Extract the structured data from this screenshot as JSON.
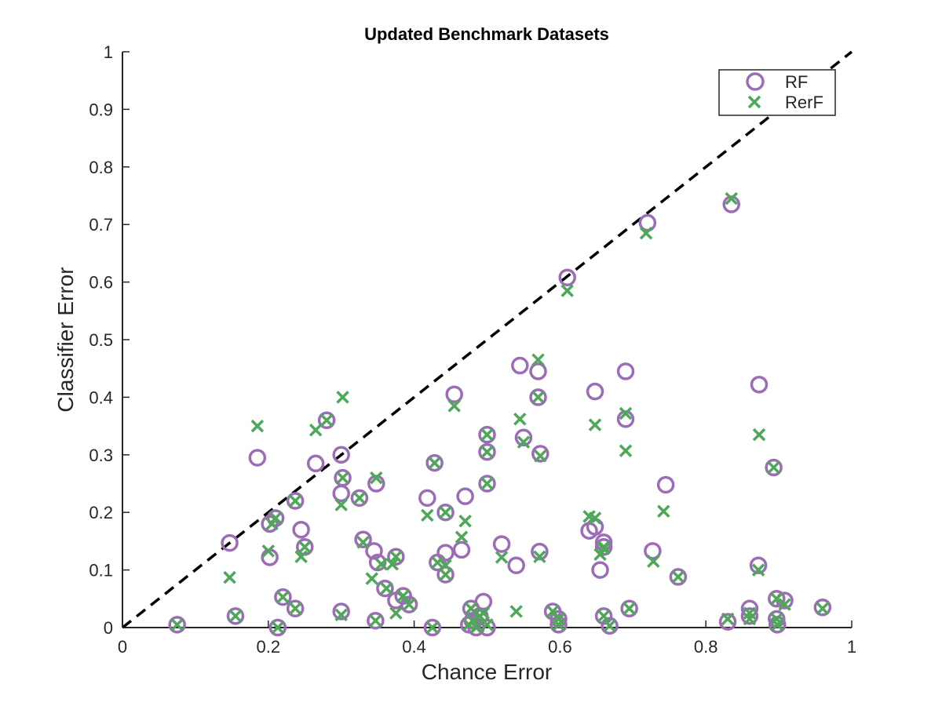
{
  "chart_data": {
    "type": "scatter",
    "title": "Updated Benchmark Datasets",
    "xlabel": "Chance Error",
    "ylabel": "Classifier Error",
    "xlim": [
      0,
      1
    ],
    "ylim": [
      0,
      1
    ],
    "xticks": [
      0,
      0.2,
      0.4,
      0.6,
      0.8,
      1
    ],
    "xtick_labels": [
      "0",
      "0.2",
      "0.4",
      "0.6",
      "0.8",
      "1"
    ],
    "yticks": [
      0,
      0.1,
      0.2,
      0.3,
      0.4,
      0.5,
      0.6,
      0.7,
      0.8,
      0.9,
      1
    ],
    "ytick_labels": [
      "0",
      "0.1",
      "0.2",
      "0.3",
      "0.4",
      "0.5",
      "0.6",
      "0.7",
      "0.8",
      "0.9",
      "1"
    ],
    "grid": false,
    "legend_position": "top-right",
    "reference_line": {
      "style": "dashed",
      "color": "#000000",
      "from": [
        0,
        0
      ],
      "to": [
        1,
        1
      ]
    },
    "series": [
      {
        "name": "RF",
        "marker": "circle",
        "color": "#9b6db5",
        "points": [
          [
            0.075,
            0.005
          ],
          [
            0.147,
            0.147
          ],
          [
            0.155,
            0.02
          ],
          [
            0.185,
            0.295
          ],
          [
            0.202,
            0.18
          ],
          [
            0.202,
            0.122
          ],
          [
            0.21,
            0.19
          ],
          [
            0.213,
            0.0
          ],
          [
            0.22,
            0.053
          ],
          [
            0.237,
            0.22
          ],
          [
            0.237,
            0.033
          ],
          [
            0.245,
            0.17
          ],
          [
            0.25,
            0.14
          ],
          [
            0.265,
            0.285
          ],
          [
            0.28,
            0.36
          ],
          [
            0.3,
            0.3
          ],
          [
            0.3,
            0.233
          ],
          [
            0.302,
            0.26
          ],
          [
            0.3,
            0.028
          ],
          [
            0.325,
            0.225
          ],
          [
            0.33,
            0.153
          ],
          [
            0.345,
            0.133
          ],
          [
            0.348,
            0.25
          ],
          [
            0.35,
            0.113
          ],
          [
            0.347,
            0.012
          ],
          [
            0.36,
            0.068
          ],
          [
            0.375,
            0.123
          ],
          [
            0.375,
            0.047
          ],
          [
            0.385,
            0.055
          ],
          [
            0.393,
            0.04
          ],
          [
            0.418,
            0.225
          ],
          [
            0.425,
            0.0
          ],
          [
            0.428,
            0.286
          ],
          [
            0.432,
            0.113
          ],
          [
            0.443,
            0.2
          ],
          [
            0.443,
            0.13
          ],
          [
            0.443,
            0.092
          ],
          [
            0.455,
            0.405
          ],
          [
            0.465,
            0.135
          ],
          [
            0.47,
            0.228
          ],
          [
            0.475,
            0.005
          ],
          [
            0.478,
            0.033
          ],
          [
            0.48,
            0.012
          ],
          [
            0.485,
            0.0
          ],
          [
            0.49,
            0.02
          ],
          [
            0.495,
            0.045
          ],
          [
            0.5,
            0.335
          ],
          [
            0.5,
            0.305
          ],
          [
            0.5,
            0.25
          ],
          [
            0.5,
            0.0
          ],
          [
            0.52,
            0.145
          ],
          [
            0.54,
            0.108
          ],
          [
            0.545,
            0.455
          ],
          [
            0.55,
            0.33
          ],
          [
            0.57,
            0.445
          ],
          [
            0.57,
            0.4
          ],
          [
            0.573,
            0.302
          ],
          [
            0.572,
            0.132
          ],
          [
            0.59,
            0.028
          ],
          [
            0.598,
            0.015
          ],
          [
            0.598,
            0.005
          ],
          [
            0.61,
            0.608
          ],
          [
            0.64,
            0.168
          ],
          [
            0.648,
            0.41
          ],
          [
            0.648,
            0.175
          ],
          [
            0.655,
            0.1
          ],
          [
            0.66,
            0.148
          ],
          [
            0.66,
            0.14
          ],
          [
            0.66,
            0.02
          ],
          [
            0.668,
            0.003
          ],
          [
            0.69,
            0.445
          ],
          [
            0.69,
            0.362
          ],
          [
            0.695,
            0.033
          ],
          [
            0.72,
            0.703
          ],
          [
            0.727,
            0.133
          ],
          [
            0.745,
            0.248
          ],
          [
            0.762,
            0.088
          ],
          [
            0.83,
            0.01
          ],
          [
            0.835,
            0.735
          ],
          [
            0.86,
            0.033
          ],
          [
            0.86,
            0.02
          ],
          [
            0.873,
            0.422
          ],
          [
            0.872,
            0.108
          ],
          [
            0.893,
            0.278
          ],
          [
            0.897,
            0.05
          ],
          [
            0.897,
            0.015
          ],
          [
            0.898,
            0.005
          ],
          [
            0.908,
            0.047
          ],
          [
            0.96,
            0.035
          ]
        ]
      },
      {
        "name": "RerF",
        "marker": "x",
        "color": "#4fa85a",
        "points": [
          [
            0.075,
            0.005
          ],
          [
            0.147,
            0.087
          ],
          [
            0.155,
            0.02
          ],
          [
            0.185,
            0.35
          ],
          [
            0.2,
            0.133
          ],
          [
            0.205,
            0.18
          ],
          [
            0.21,
            0.19
          ],
          [
            0.213,
            0.0
          ],
          [
            0.22,
            0.053
          ],
          [
            0.237,
            0.22
          ],
          [
            0.237,
            0.033
          ],
          [
            0.245,
            0.123
          ],
          [
            0.25,
            0.14
          ],
          [
            0.265,
            0.343
          ],
          [
            0.28,
            0.36
          ],
          [
            0.302,
            0.4
          ],
          [
            0.3,
            0.213
          ],
          [
            0.302,
            0.26
          ],
          [
            0.3,
            0.022
          ],
          [
            0.325,
            0.225
          ],
          [
            0.33,
            0.148
          ],
          [
            0.342,
            0.085
          ],
          [
            0.348,
            0.26
          ],
          [
            0.355,
            0.11
          ],
          [
            0.347,
            0.012
          ],
          [
            0.362,
            0.068
          ],
          [
            0.37,
            0.11
          ],
          [
            0.375,
            0.123
          ],
          [
            0.375,
            0.025
          ],
          [
            0.385,
            0.055
          ],
          [
            0.393,
            0.04
          ],
          [
            0.418,
            0.195
          ],
          [
            0.425,
            0.0
          ],
          [
            0.428,
            0.286
          ],
          [
            0.432,
            0.113
          ],
          [
            0.443,
            0.2
          ],
          [
            0.443,
            0.108
          ],
          [
            0.443,
            0.092
          ],
          [
            0.455,
            0.385
          ],
          [
            0.465,
            0.157
          ],
          [
            0.47,
            0.185
          ],
          [
            0.475,
            0.005
          ],
          [
            0.478,
            0.033
          ],
          [
            0.48,
            0.012
          ],
          [
            0.485,
            0.0
          ],
          [
            0.49,
            0.02
          ],
          [
            0.495,
            0.025
          ],
          [
            0.5,
            0.335
          ],
          [
            0.5,
            0.305
          ],
          [
            0.5,
            0.25
          ],
          [
            0.5,
            0.005
          ],
          [
            0.52,
            0.122
          ],
          [
            0.54,
            0.028
          ],
          [
            0.545,
            0.362
          ],
          [
            0.55,
            0.322
          ],
          [
            0.57,
            0.465
          ],
          [
            0.57,
            0.4
          ],
          [
            0.573,
            0.298
          ],
          [
            0.572,
            0.123
          ],
          [
            0.59,
            0.028
          ],
          [
            0.598,
            0.015
          ],
          [
            0.598,
            0.005
          ],
          [
            0.61,
            0.585
          ],
          [
            0.64,
            0.193
          ],
          [
            0.648,
            0.352
          ],
          [
            0.648,
            0.19
          ],
          [
            0.655,
            0.127
          ],
          [
            0.66,
            0.137
          ],
          [
            0.66,
            0.14
          ],
          [
            0.66,
            0.02
          ],
          [
            0.668,
            0.003
          ],
          [
            0.69,
            0.372
          ],
          [
            0.69,
            0.307
          ],
          [
            0.695,
            0.033
          ],
          [
            0.718,
            0.685
          ],
          [
            0.728,
            0.115
          ],
          [
            0.742,
            0.202
          ],
          [
            0.762,
            0.088
          ],
          [
            0.83,
            0.015
          ],
          [
            0.835,
            0.745
          ],
          [
            0.86,
            0.025
          ],
          [
            0.86,
            0.015
          ],
          [
            0.873,
            0.335
          ],
          [
            0.872,
            0.1
          ],
          [
            0.893,
            0.278
          ],
          [
            0.897,
            0.05
          ],
          [
            0.897,
            0.015
          ],
          [
            0.898,
            0.005
          ],
          [
            0.908,
            0.04
          ],
          [
            0.96,
            0.033
          ]
        ]
      }
    ]
  }
}
